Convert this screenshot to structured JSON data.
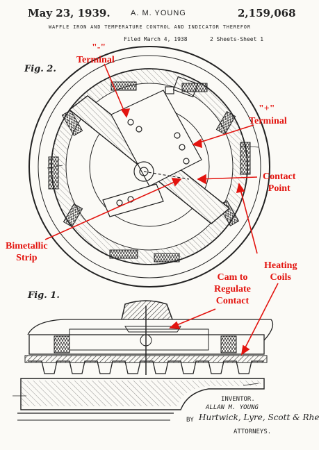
{
  "header": {
    "date": "May 23, 1939.",
    "inventor": "A. M. YOUNG",
    "patent_number": "2,159,068",
    "title": "WAFFLE IRON AND TEMPERATURE CONTROL AND INDICATOR THEREFOR",
    "filed": "Filed March 4, 1938",
    "sheets": "2 Sheets-Sheet 1"
  },
  "figures": {
    "fig2": "Fig. 2.",
    "fig1": "Fig. 1."
  },
  "annotations": {
    "minus": "\"-\"",
    "terminal": "Terminal",
    "plus": "\"+\"",
    "plus_terminal": "Terminal",
    "contact_point_1": "Contact",
    "contact_point_2": "Point",
    "bimetallic_1": "Bimetallic",
    "bimetallic_2": "Strip",
    "cam_1": "Cam to",
    "cam_2": "Regulate",
    "cam_3": "Contact",
    "heating_1": "Heating",
    "heating_2": "Coils"
  },
  "signature": {
    "label": "INVENTOR.",
    "name": "ALLAN M. YOUNG",
    "by": "BY",
    "firm": "Hurtwick, Lyre, Scott & Rhea",
    "attorneys": "ATTORNEYS."
  },
  "colors": {
    "annotation": "#e3140f",
    "ink": "#222222",
    "paper": "#fbfaf6"
  }
}
